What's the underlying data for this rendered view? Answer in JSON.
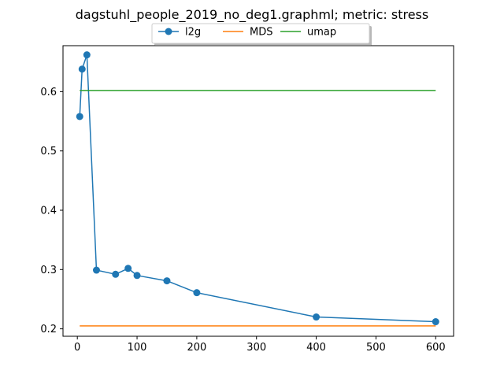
{
  "chart_data": {
    "type": "line",
    "title": "dagstuhl_people_2019_no_deg1.graphml; metric: stress",
    "xlabel": "",
    "ylabel": "",
    "xlim": [
      -24,
      630
    ],
    "ylim": [
      0.1875,
      0.6775
    ],
    "x_ticks": [
      0,
      100,
      200,
      300,
      400,
      500,
      600
    ],
    "y_ticks": [
      0.2,
      0.3,
      0.4,
      0.5,
      0.6
    ],
    "x_tick_labels": [
      "0",
      "100",
      "200",
      "300",
      "400",
      "500",
      "600"
    ],
    "y_tick_labels": [
      "0.2",
      "0.3",
      "0.4",
      "0.5",
      "0.6"
    ],
    "grid": false,
    "legend_position": "top-center",
    "series": [
      {
        "name": "l2g",
        "color": "#1f77b4",
        "marker": "circle",
        "x": [
          4,
          8,
          16,
          32,
          64,
          85,
          100,
          150,
          200,
          400,
          600
        ],
        "y": [
          0.558,
          0.638,
          0.662,
          0.299,
          0.292,
          0.302,
          0.29,
          0.281,
          0.261,
          0.22,
          0.212
        ]
      },
      {
        "name": "MDS",
        "color": "#ff7f0e",
        "marker": "none",
        "x": [
          4,
          600
        ],
        "y": [
          0.205,
          0.205
        ]
      },
      {
        "name": "umap",
        "color": "#2ca02c",
        "marker": "none",
        "x": [
          4,
          600
        ],
        "y": [
          0.602,
          0.602
        ]
      }
    ]
  }
}
